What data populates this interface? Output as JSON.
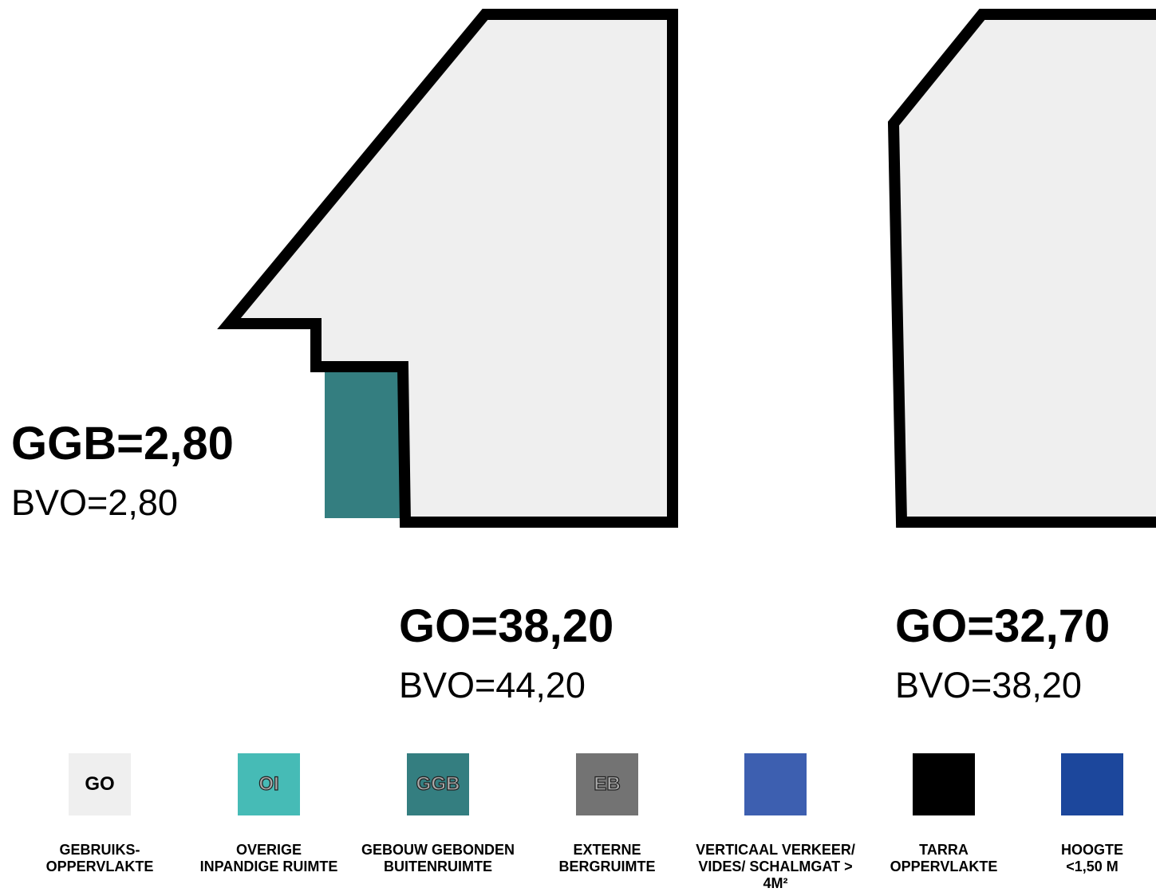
{
  "plans": {
    "left": {
      "ggb_area": "GGB=2,80",
      "ggb_bvo": "BVO=2,80",
      "go_area": "GO=38,20",
      "go_bvo": "BVO=44,20"
    },
    "right": {
      "go_area": "GO=32,70",
      "go_bvo": "BVO=38,20"
    }
  },
  "colors": {
    "go_fill": "#efefef",
    "oi": "#46bbb6",
    "ggb": "#347e80",
    "eb": "#737373",
    "vv": "#3d5fb0",
    "tarra": "#000000",
    "hoogte": "#1c479c"
  },
  "legend": [
    {
      "code": "GO",
      "color": "#efefef",
      "label": "GEBRUIKS-\nOPPERVLAKTE"
    },
    {
      "code": "OI",
      "color": "#46bbb6",
      "label": "OVERIGE\nINPANDIGE RUIMTE"
    },
    {
      "code": "GGB",
      "color": "#347e80",
      "label": "GEBOUW GEBONDEN\nBUITENRUIMTE"
    },
    {
      "code": "EB",
      "color": "#737373",
      "label": "EXTERNE\nBERGRUIMTE"
    },
    {
      "code": "",
      "color": "#3d5fb0",
      "label": "VERTICAAL VERKEER/\nVIDES/ SCHALMGAT > 4M²"
    },
    {
      "code": "",
      "color": "#000000",
      "label": "TARRA\nOPPERVLAKTE"
    },
    {
      "code": "",
      "color": "#1c479c",
      "label": "HOOGTE\n<1,50 M"
    }
  ]
}
